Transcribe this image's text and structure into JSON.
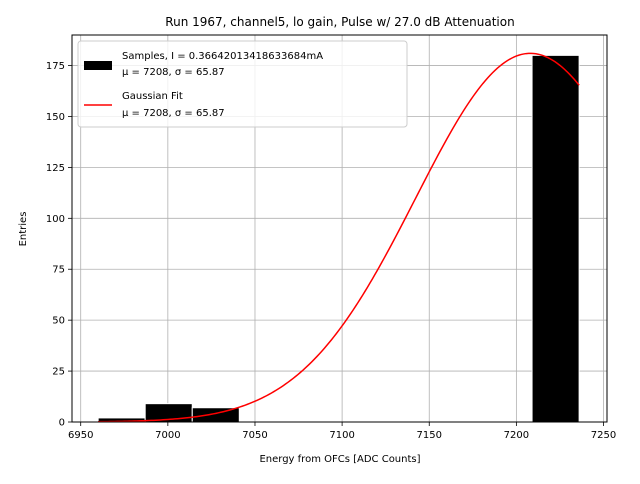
{
  "chart_data": {
    "type": "bar",
    "title": "Run 1967, channel5, lo gain, Pulse w/ 27.0 dB Attenuation",
    "xlabel": "Energy from OFCs [ADC Counts]",
    "ylabel": "Entries",
    "xlim": [
      6945,
      7252
    ],
    "ylim": [
      0,
      190
    ],
    "xticks": [
      6950,
      7000,
      7050,
      7100,
      7150,
      7200,
      7250
    ],
    "yticks": [
      0,
      25,
      50,
      75,
      100,
      125,
      150,
      175
    ],
    "grid": true,
    "legend_position": "upper-left",
    "histogram": {
      "name": "Samples, I = 0.36642013418633684mA",
      "stats": "μ = 7208, σ = 65.87",
      "color": "#000000",
      "edge_color": "#ffffff",
      "bins": [
        {
          "x0": 6960,
          "x1": 6987,
          "count": 2
        },
        {
          "x0": 6987,
          "x1": 7014,
          "count": 9
        },
        {
          "x0": 7014,
          "x1": 7041,
          "count": 7
        },
        {
          "x0": 7041,
          "x1": 7068,
          "count": 0
        },
        {
          "x0": 7068,
          "x1": 7095,
          "count": 0
        },
        {
          "x0": 7095,
          "x1": 7122,
          "count": 0
        },
        {
          "x0": 7122,
          "x1": 7149,
          "count": 0
        },
        {
          "x0": 7149,
          "x1": 7176,
          "count": 0
        },
        {
          "x0": 7176,
          "x1": 7209,
          "count": 0
        },
        {
          "x0": 7209,
          "x1": 7236,
          "count": 180
        }
      ]
    },
    "fit": {
      "name": "Gaussian Fit",
      "stats": "μ = 7208, σ = 65.87",
      "color": "#ff0000",
      "amplitude": 181,
      "mu": 7208,
      "sigma": 65.87,
      "x_range": [
        6960,
        7236
      ]
    }
  }
}
